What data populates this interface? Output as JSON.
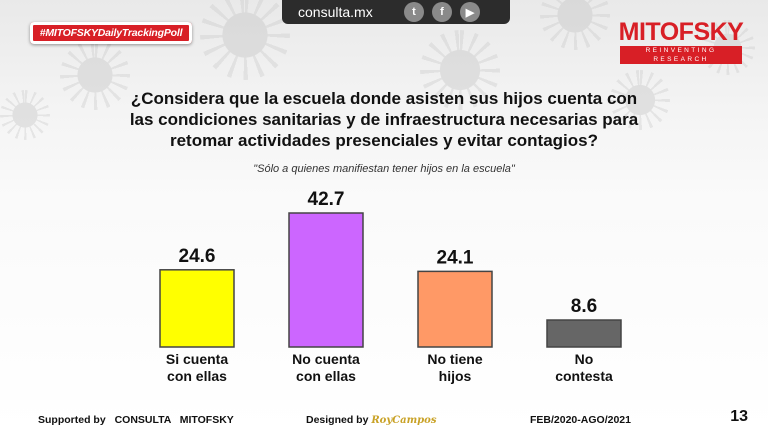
{
  "header": {
    "hashtag": "#MITOFSKYDailyTrackingPoll",
    "url": "consulta.mx",
    "social_icons": [
      "twitter-icon",
      "facebook-icon",
      "youtube-icon"
    ],
    "logo_name": "MITOFSKY",
    "logo_tagline": "REINVENTING RESEARCH"
  },
  "question": {
    "line1": "¿Considera que la escuela donde asisten sus hijos cuenta con",
    "line2": "las condiciones sanitarias y de infraestructura necesarias para",
    "line3": "retomar actividades presenciales y evitar contagios?"
  },
  "note": "\"Sólo a quienes manifiestan tener hijos en la escuela\"",
  "chart_data": {
    "type": "bar",
    "title": "¿Considera que la escuela donde asisten sus hijos cuenta con las condiciones sanitarias y de infraestructura necesarias para retomar actividades presenciales y evitar contagios?",
    "subtitle": "\"Sólo a quienes manifiestan tener hijos en la escuela\"",
    "categories": [
      [
        "Si cuenta",
        "con ellas"
      ],
      [
        "No cuenta",
        "con ellas"
      ],
      [
        "No tiene",
        "hijos"
      ],
      [
        "No",
        "contesta"
      ]
    ],
    "values": [
      24.6,
      42.7,
      24.1,
      8.6
    ],
    "value_labels": [
      "24.6",
      "42.7",
      "24.1",
      "8.6"
    ],
    "colors": [
      "#ffff00",
      "#cc66ff",
      "#ff9966",
      "#666666"
    ],
    "ylim": [
      0,
      42.7
    ],
    "grid": false,
    "legend": "none",
    "xlabel": "",
    "ylabel": ""
  },
  "footer": {
    "supported_label": "Supported by",
    "supported_org": "CONSULTA   MITOFSKY",
    "designed_label": "Designed by",
    "designed_name": "RoyCampos",
    "period": "FEB/2020-AGO/2021",
    "page": "13"
  }
}
